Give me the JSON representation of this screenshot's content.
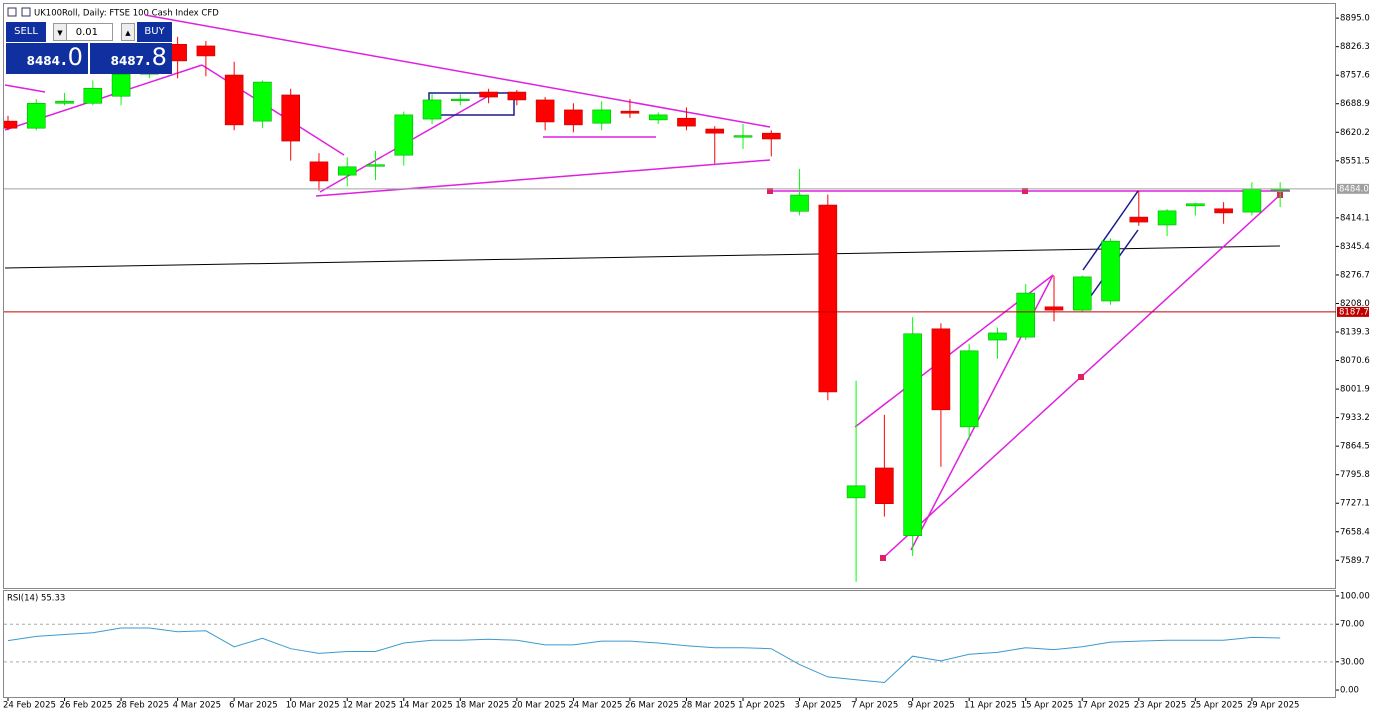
{
  "header": {
    "title": "UK100Roll, Daily: FTSE 100 Cash Index CFD"
  },
  "trade_panel": {
    "sell": "SELL",
    "lot": "0.01",
    "buy": "BUY",
    "bid_big": "8484",
    "bid_small": ".0",
    "ask_big": "8487",
    "ask_small": ".8"
  },
  "chart_data": {
    "type": "candlestick",
    "categories": [
      "24 Feb 2025",
      null,
      "26 Feb 2025",
      null,
      "28 Feb 2025",
      null,
      "4 Mar 2025",
      null,
      "6 Mar 2025",
      null,
      "10 Mar 2025",
      null,
      "12 Mar 2025",
      null,
      "14 Mar 2025",
      null,
      "18 Mar 2025",
      null,
      "20 Mar 2025",
      null,
      "24 Mar 2025",
      null,
      "26 Mar 2025",
      null,
      "28 Mar 2025",
      null,
      "1 Apr 2025",
      null,
      "3 Apr 2025",
      null,
      "7 Apr 2025",
      null,
      "9 Apr 2025",
      null,
      "11 Apr 2025",
      null,
      "15 Apr 2025",
      null,
      "17 Apr 2025",
      null,
      "23 Apr 2025",
      null,
      "25 Apr 2025",
      null,
      "29 Apr 2025",
      null
    ],
    "open": [
      8647,
      8630,
      8690,
      8690,
      8707,
      8760,
      8832,
      8828,
      8758,
      8647,
      8710,
      8549,
      8517,
      8540,
      8565,
      8652,
      8698,
      8717,
      8717,
      8698,
      8674,
      8642,
      8671,
      8650,
      8654,
      8628,
      8610,
      8618,
      8430,
      8445,
      7740,
      7812,
      7649,
      8147,
      7911,
      8120,
      8127,
      8200,
      8192,
      8214,
      8416,
      8397,
      8443,
      8436,
      8428,
      8480
    ],
    "high": [
      8660,
      8700,
      8715,
      8745,
      8790,
      8880,
      8850,
      8840,
      8790,
      8745,
      8725,
      8570,
      8560,
      8575,
      8670,
      8712,
      8712,
      8725,
      8722,
      8705,
      8690,
      8695,
      8700,
      8668,
      8680,
      8635,
      8640,
      8625,
      8532,
      8470,
      8022,
      7940,
      8175,
      8160,
      8110,
      8150,
      8255,
      8275,
      8275,
      8365,
      8480,
      8435,
      8450,
      8452,
      8500,
      8500
    ],
    "low": [
      8625,
      8625,
      8685,
      8685,
      8685,
      8750,
      8750,
      8755,
      8625,
      8630,
      8552,
      8480,
      8490,
      8505,
      8540,
      8640,
      8685,
      8690,
      8685,
      8625,
      8620,
      8625,
      8655,
      8640,
      8625,
      8545,
      8580,
      8562,
      8420,
      7975,
      7538,
      7695,
      7600,
      7815,
      7880,
      8075,
      8120,
      8165,
      8188,
      8205,
      8395,
      8370,
      8420,
      8400,
      8420,
      8440
    ],
    "close": [
      8630,
      8690,
      8695,
      8726,
      8760,
      8870,
      8792,
      8804,
      8638,
      8741,
      8599,
      8503,
      8537,
      8542,
      8662,
      8698,
      8700,
      8705,
      8698,
      8645,
      8638,
      8674,
      8666,
      8662,
      8635,
      8618,
      8612,
      8604,
      8469,
      7995,
      7769,
      7726,
      8135,
      7952,
      8094,
      8137,
      8233,
      8192,
      8272,
      8358,
      8404,
      8431,
      8448,
      8426,
      8484,
      8484
    ],
    "up_color": "#00ff00",
    "down_color": "#ff0000",
    "ylim": [
      7523,
      8929
    ],
    "yticks": [
      {
        "value": 8895.0,
        "label": "8895.0"
      },
      {
        "value": 8826.3,
        "label": "8826.3"
      },
      {
        "value": 8757.6,
        "label": "8757.6"
      },
      {
        "value": 8688.9,
        "label": "8688.9"
      },
      {
        "value": 8620.2,
        "label": "8620.2"
      },
      {
        "value": 8551.5,
        "label": "8551.5"
      },
      {
        "value": 8414.1,
        "label": "8414.1"
      },
      {
        "value": 8345.4,
        "label": "8345.4"
      },
      {
        "value": 8276.7,
        "label": "8276.7"
      },
      {
        "value": 8208.0,
        "label": "8208.0"
      },
      {
        "value": 8139.3,
        "label": "8139.3"
      },
      {
        "value": 8070.6,
        "label": "8070.6"
      },
      {
        "value": 8001.9,
        "label": "8001.9"
      },
      {
        "value": 7933.2,
        "label": "7933.2"
      },
      {
        "value": 7864.5,
        "label": "7864.5"
      },
      {
        "value": 7795.8,
        "label": "7795.8"
      },
      {
        "value": 7727.1,
        "label": "7727.1"
      },
      {
        "value": 7658.4,
        "label": "7658.4"
      },
      {
        "value": 7589.7,
        "label": "7589.7"
      }
    ],
    "price_lines": [
      {
        "value": 8484.0,
        "label": "8484.0",
        "color": "#a0a0a0"
      },
      {
        "value": 8187.7,
        "label": "8187.7",
        "color": "#c00000"
      }
    ],
    "indicator": {
      "label": "RSI(14) 55.33",
      "color": "#3c9ad0",
      "values": [
        52.6,
        57,
        59,
        61,
        66,
        66,
        62,
        63,
        46,
        55,
        44,
        39,
        41,
        41,
        50,
        53,
        53,
        54,
        53,
        48,
        48,
        52,
        52,
        50,
        47,
        45,
        45,
        44,
        27,
        14,
        11,
        8,
        36,
        31,
        38,
        40,
        45,
        43,
        46,
        51,
        52,
        53,
        53,
        53,
        56,
        55.33
      ],
      "ylim": [
        -7.4,
        105.3
      ],
      "yticks": [
        {
          "value": 100,
          "label": "100.00"
        },
        {
          "value": 70,
          "label": "70.00"
        },
        {
          "value": 30,
          "label": "30.00"
        },
        {
          "value": 0,
          "label": "0.00"
        }
      ],
      "levels": [
        70,
        30
      ]
    }
  }
}
